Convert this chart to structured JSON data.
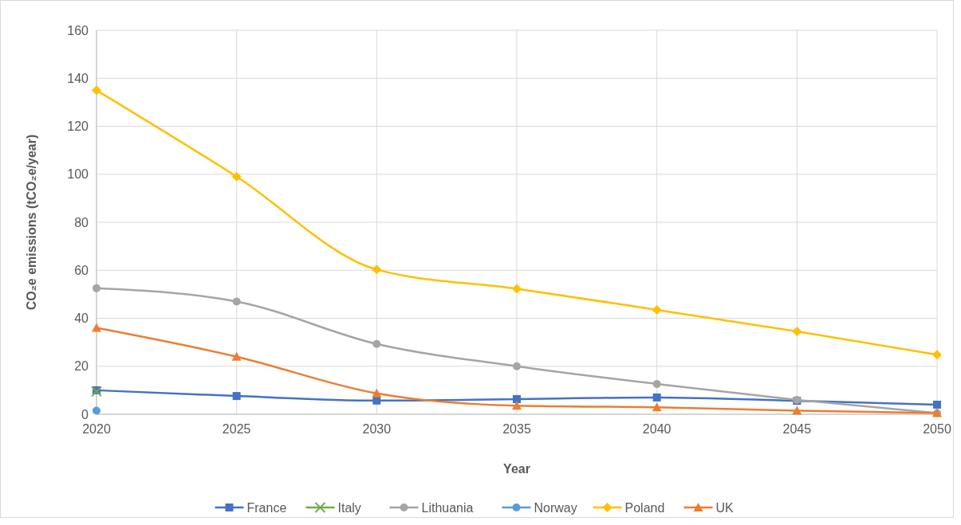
{
  "chart_data": {
    "type": "line",
    "xlabel": "Year",
    "ylabel": "CO₂e emissions (tCO₂e/year)",
    "x": [
      2020,
      2025,
      2030,
      2035,
      2040,
      2045,
      2050
    ],
    "xlim": [
      2020,
      2050
    ],
    "xticks": [
      2020,
      2025,
      2030,
      2035,
      2040,
      2045,
      2050
    ],
    "ylim": [
      0,
      160
    ],
    "yticks": [
      0,
      20,
      40,
      60,
      80,
      100,
      120,
      140,
      160
    ],
    "grid": true,
    "legend": "bottom",
    "series": [
      {
        "name": "France",
        "color": "#4472c4",
        "marker": "square",
        "values": [
          10,
          7.6,
          5.7,
          6.3,
          7,
          5.6,
          4
        ]
      },
      {
        "name": "Italy",
        "color": "#70ad47",
        "marker": "cross",
        "values": [
          9.5,
          null,
          null,
          null,
          null,
          null,
          null
        ]
      },
      {
        "name": "Lithuania",
        "color": "#a5a5a5",
        "marker": "circle",
        "values": [
          52.5,
          47,
          29.3,
          20,
          12.6,
          6,
          0.5
        ]
      },
      {
        "name": "Norway",
        "color": "#5b9bd5",
        "marker": "circle",
        "values": [
          1.5,
          null,
          null,
          null,
          null,
          null,
          null
        ]
      },
      {
        "name": "Poland",
        "color": "#ffc000",
        "marker": "diamond",
        "values": [
          135,
          99,
          60.3,
          52.3,
          43.5,
          34.5,
          24.8
        ]
      },
      {
        "name": "UK",
        "color": "#ed7d31",
        "marker": "triangle",
        "values": [
          36,
          24,
          8.7,
          3.6,
          2.9,
          1.5,
          0.5
        ]
      }
    ]
  }
}
